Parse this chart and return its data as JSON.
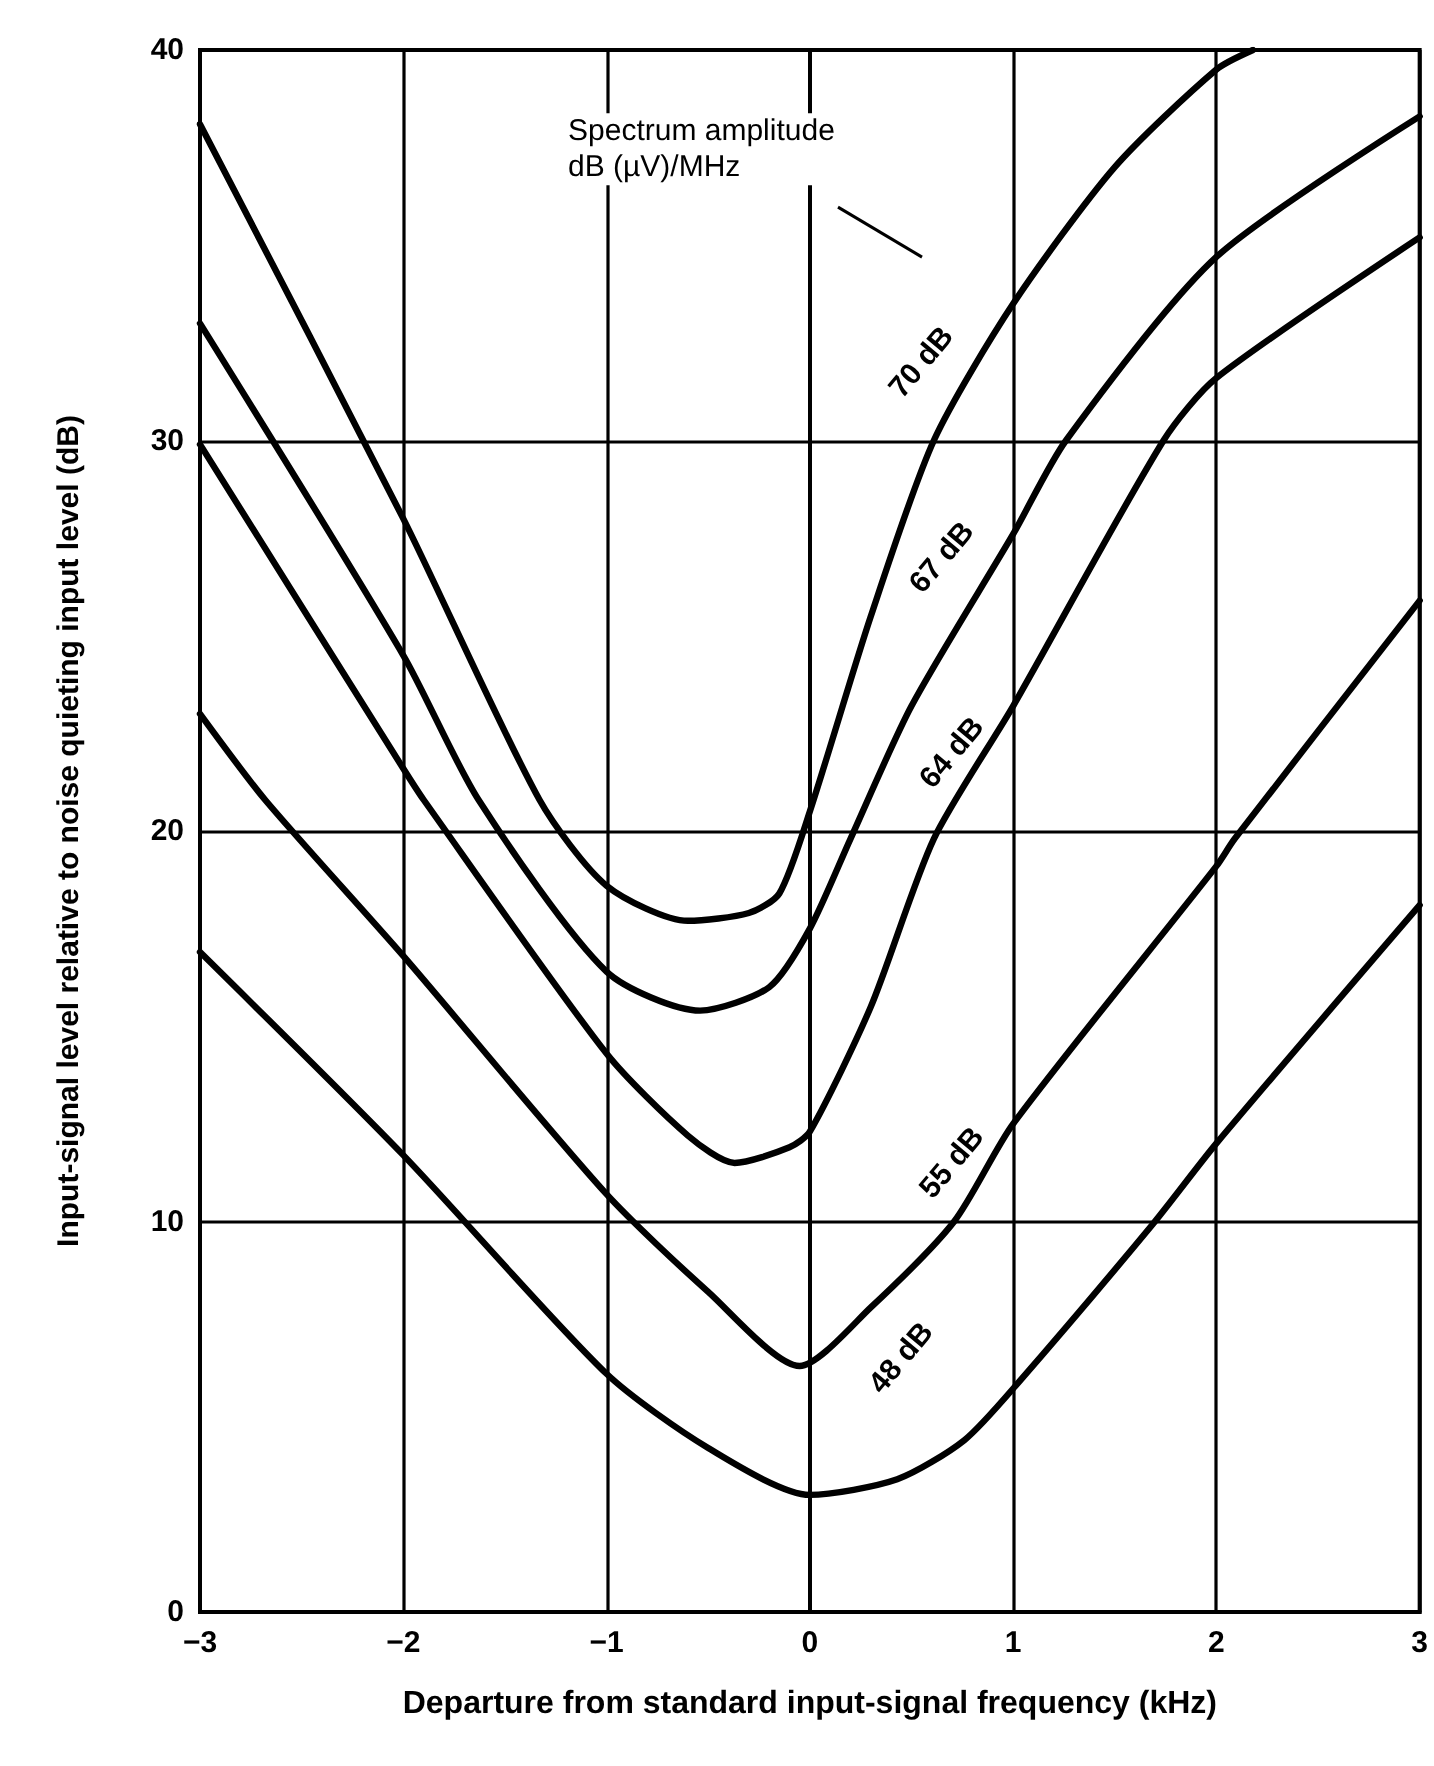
{
  "chart_data": {
    "type": "line",
    "xlabel": "Departure from standard input-signal frequency (kHz)",
    "ylabel": "Input-signal level relative to noise quieting input level (dB)",
    "xlim": [
      -3,
      3
    ],
    "ylim": [
      0,
      40
    ],
    "xticks": [
      -3,
      -2,
      -1,
      0,
      1,
      2,
      3
    ],
    "yticks": [
      0,
      10,
      20,
      30,
      40
    ],
    "grid": true,
    "marker": "none",
    "line_style": "solid",
    "series": [
      {
        "color": "#000000",
        "x": [
          -3,
          -2,
          -1.33,
          -1,
          -0.6,
          -0.3,
          -0.15,
          0,
          0.3,
          0.61,
          1,
          1.5,
          2,
          2.18
        ],
        "values": [
          38.1,
          28,
          20.8,
          18.6,
          17.7,
          17.9,
          18.4,
          20.5,
          25.5,
          30,
          33.5,
          37,
          39.5,
          40
        ]
      },
      {
        "color": "#000000",
        "x": [
          -3,
          -2,
          -1.63,
          -1,
          -0.54,
          -0.2,
          0,
          0.2,
          0.5,
          1,
          1.26,
          2,
          3
        ],
        "values": [
          33,
          24.5,
          20.8,
          16.4,
          15.4,
          16,
          17.5,
          19.8,
          23.2,
          27.6,
          30,
          34.7,
          38.3
        ]
      },
      {
        "color": "#000000",
        "x": [
          -3,
          -2,
          -1.9,
          -1,
          -0.6,
          -0.37,
          -0.1,
          0,
          0.3,
          0.61,
          1,
          1.74,
          2,
          3
        ],
        "values": [
          29.9,
          21.6,
          20.8,
          14.3,
          12.2,
          11.5,
          11.9,
          12.3,
          15.5,
          19.8,
          23.2,
          30,
          31.6,
          35.2
        ]
      },
      {
        "color": "#000000",
        "x": [
          -3,
          -2.68,
          -2,
          -1,
          -0.5,
          -0.05,
          0.3,
          0.71,
          1,
          2,
          2.09,
          3
        ],
        "values": [
          23,
          20.8,
          16.8,
          10.7,
          8.2,
          6.3,
          7.8,
          10,
          12.5,
          19.1,
          19.8,
          25.9
        ]
      },
      {
        "color": "#000000",
        "x": [
          -3,
          -2,
          -1,
          -0.5,
          0,
          0.43,
          0.76,
          1.03,
          1.69,
          2,
          3
        ],
        "values": [
          16.9,
          11.7,
          6.1,
          4.2,
          3,
          3.4,
          4.4,
          5.9,
          9.95,
          12,
          18.1
        ]
      }
    ],
    "annotations": [
      "Spectrum amplitude\ndB (µV)/MHz",
      {
        "text": "70 dB",
        "x": 0.55,
        "y": 32
      },
      {
        "text": "67 dB",
        "x": 0.65,
        "y": 27
      },
      {
        "text": "64 dB",
        "x": 0.7,
        "y": 22
      },
      {
        "text": "55 dB",
        "x": 0.7,
        "y": 11.5
      },
      {
        "text": "48 dB",
        "x": 0.45,
        "y": 6.5
      }
    ]
  }
}
